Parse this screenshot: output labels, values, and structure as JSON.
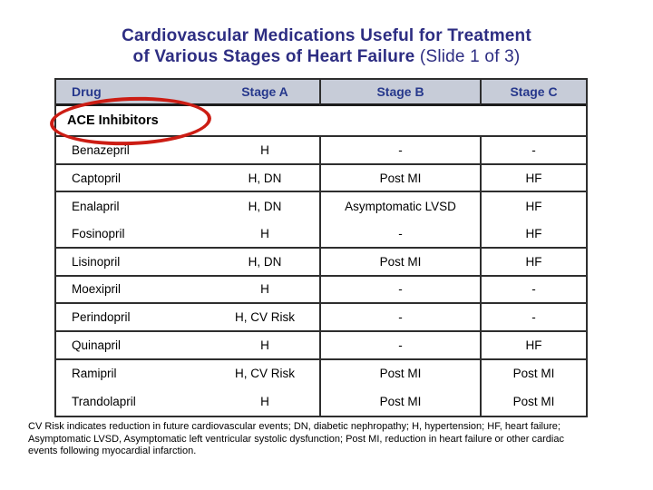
{
  "title": {
    "line1": "Cardiovascular Medications Useful for Treatment",
    "line2_bold": "of Various Stages of Heart Failure",
    "line2_suffix": "(Slide 1 of 3)"
  },
  "table": {
    "headers": [
      "Drug",
      "Stage A",
      "Stage B",
      "Stage C"
    ],
    "section_label": "ACE Inhibitors",
    "rows": [
      {
        "drug": "Benazepril",
        "stage_a": "H",
        "stage_b": "-",
        "stage_c": "-"
      },
      {
        "drug": "Captopril",
        "stage_a": "H, DN",
        "stage_b": "Post MI",
        "stage_c": "HF"
      },
      {
        "drug": "Enalapril",
        "stage_a": "H, DN",
        "stage_b": "Asymptomatic LVSD",
        "stage_c": "HF"
      },
      {
        "drug": "Fosinopril",
        "stage_a": "H",
        "stage_b": "-",
        "stage_c": "HF"
      },
      {
        "drug": "Lisinopril",
        "stage_a": "H, DN",
        "stage_b": "Post MI",
        "stage_c": "HF"
      },
      {
        "drug": "Moexipril",
        "stage_a": "H",
        "stage_b": "-",
        "stage_c": "-"
      },
      {
        "drug": "Perindopril",
        "stage_a": "H, CV Risk",
        "stage_b": "-",
        "stage_c": "-"
      },
      {
        "drug": "Quinapril",
        "stage_a": "H",
        "stage_b": "-",
        "stage_c": "HF"
      },
      {
        "drug": "Ramipril",
        "stage_a": "H, CV Risk",
        "stage_b": "Post MI",
        "stage_c": "Post MI"
      },
      {
        "drug": "Trandolapril",
        "stage_a": "H",
        "stage_b": "Post MI",
        "stage_c": "Post MI"
      }
    ]
  },
  "footnote": {
    "lines": [
      "CV Risk indicates reduction in future cardiovascular events; DN, diabetic nephropathy; H, hypertension; HF, heart failure;",
      "Asymptomatic LVSD, Asymptomatic left ventricular systolic dysfunction; Post MI, reduction in heart failure or other cardiac",
      "events following myocardial infarction."
    ]
  },
  "colors": {
    "title_text": "#2d2d82",
    "header_text": "#26388c",
    "header_bg": "#c7ccd8",
    "table_border": "#2e2e2e",
    "highlight_ellipse_red": "#cc1d14",
    "body_text": "#000000",
    "background": "#ffffff"
  }
}
